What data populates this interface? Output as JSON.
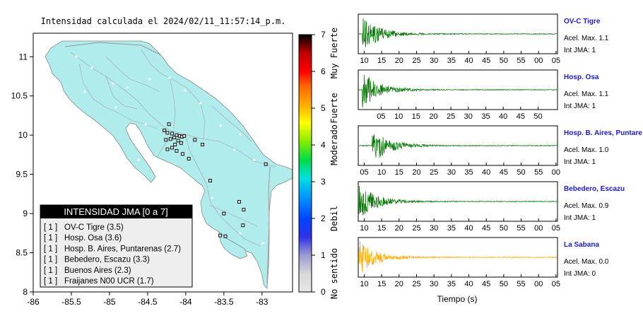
{
  "title": "Intensidad calculada el 2024/02/11_11:57:14_p.m.",
  "map": {
    "lon_range": [
      -86,
      -82.6
    ],
    "lat_range": [
      8,
      11.3
    ],
    "x_ticks": [
      "-86",
      "-85.5",
      "-85",
      "-84.5",
      "-84",
      "-83.5",
      "-83"
    ],
    "x_tick_values": [
      -86,
      -85.5,
      -85,
      -84.5,
      -84,
      -83.5,
      -83
    ],
    "y_ticks": [
      "8",
      "8.5",
      "9",
      "9.5",
      "10",
      "10.5",
      "11"
    ],
    "y_tick_values": [
      8,
      8.5,
      9,
      9.5,
      10,
      10.5,
      11
    ],
    "land_color": "#b0ecec",
    "sea_color": "#ffffff",
    "station_markers": [
      [
        -84.22,
        10.14
      ],
      [
        -84.28,
        10.06
      ],
      [
        -84.24,
        10.03
      ],
      [
        -84.18,
        10.02
      ],
      [
        -84.12,
        10.0
      ],
      [
        -84.08,
        9.99
      ],
      [
        -84.05,
        9.98
      ],
      [
        -84.02,
        9.99
      ],
      [
        -84.15,
        9.97
      ],
      [
        -84.2,
        9.95
      ],
      [
        -84.26,
        9.94
      ],
      [
        -84.1,
        9.93
      ],
      [
        -84.06,
        9.9
      ],
      [
        -84.14,
        9.88
      ],
      [
        -84.18,
        9.84
      ],
      [
        -84.24,
        9.82
      ],
      [
        -84.12,
        9.8
      ],
      [
        -84.04,
        9.76
      ],
      [
        -83.96,
        9.7
      ],
      [
        -83.88,
        9.94
      ],
      [
        -83.78,
        9.88
      ],
      [
        -83.68,
        9.42
      ],
      [
        -83.3,
        9.15
      ],
      [
        -83.24,
        9.05
      ],
      [
        -83.5,
        9.0
      ],
      [
        -83.25,
        8.85
      ],
      [
        -83.55,
        8.72
      ],
      [
        -83.48,
        8.71
      ],
      [
        -82.95,
        9.63
      ]
    ]
  },
  "legend": {
    "title": "INTENSIDAD JMA [0 a 7]",
    "items": [
      {
        "level": "[ 1 ]",
        "label": "OV-C Tigre (3.5)"
      },
      {
        "level": "[ 1 ]",
        "label": "Hosp. Osa (3.6)"
      },
      {
        "level": "[ 1 ]",
        "label": "Hosp. B. Aires, Puntarenas (2.7)"
      },
      {
        "level": "[ 1 ]",
        "label": "Bebedero, Escazu (3.3)"
      },
      {
        "level": "[ 1 ]",
        "label": "Buenos Aires (2.3)"
      },
      {
        "level": "[ 1 ]",
        "label": "Fraijanes N00 UCR (1.7)"
      }
    ]
  },
  "colorbar": {
    "ticks": [
      "0",
      "1",
      "2",
      "3",
      "4",
      "5",
      "6",
      "7"
    ],
    "range": [
      0,
      7
    ],
    "category_labels": [
      {
        "text": "No sentido",
        "value": 0.5
      },
      {
        "text": "Debil",
        "value": 2.0
      },
      {
        "text": "Moderado",
        "value": 4.0
      },
      {
        "text": "Fuerte",
        "value": 5.0
      },
      {
        "text": "Muy Fuerte",
        "value": 6.5
      }
    ],
    "stops": [
      {
        "v": 0.0,
        "c": "#e6e6e6"
      },
      {
        "v": 0.5,
        "c": "#d8d8d8"
      },
      {
        "v": 1.0,
        "c": "#9a9ad0"
      },
      {
        "v": 1.5,
        "c": "#3030e8"
      },
      {
        "v": 2.0,
        "c": "#0044ff"
      },
      {
        "v": 2.6,
        "c": "#0099ff"
      },
      {
        "v": 3.1,
        "c": "#00e0e0"
      },
      {
        "v": 3.6,
        "c": "#00dd44"
      },
      {
        "v": 4.1,
        "c": "#88ee00"
      },
      {
        "v": 4.6,
        "c": "#ffff00"
      },
      {
        "v": 5.1,
        "c": "#ffaa00"
      },
      {
        "v": 5.6,
        "c": "#ff6600"
      },
      {
        "v": 6.0,
        "c": "#ff0000"
      },
      {
        "v": 6.5,
        "c": "#c00000"
      },
      {
        "v": 7.0,
        "c": "#000000"
      }
    ]
  },
  "waveforms": {
    "xlabel": "Tiempo (s)",
    "amax_label": "Acel. Max.",
    "jma_label": "Int JMA:",
    "panels": [
      {
        "name": "OV-C Tigre",
        "acel": "1.1",
        "jma": "1",
        "color": "#0e7a0e",
        "onset": 0.02,
        "ticks": [
          "10",
          "15",
          "20",
          "25",
          "30",
          "35",
          "40",
          "45",
          "50",
          "55",
          "00",
          "05"
        ],
        "tick_start": 0.03
      },
      {
        "name": "Hosp. Osa",
        "acel": "1.1",
        "jma": "1",
        "color": "#0e7a0e",
        "onset": 0.02,
        "ticks": [
          "05",
          "10",
          "15",
          "20",
          "25",
          "30",
          "35",
          "40",
          "45",
          "50"
        ],
        "tick_start": 0.115
      },
      {
        "name": "Hosp. B. Aires, Puntare",
        "acel": "1.0",
        "jma": "1",
        "color": "#0e7a0e",
        "onset": 0.07,
        "ticks": [
          "05",
          "10",
          "15",
          "20",
          "25",
          "30",
          "35",
          "40",
          "45",
          "50",
          "55",
          "00"
        ],
        "tick_start": 0.03
      },
      {
        "name": "Bebedero, Escazu",
        "acel": "0.9",
        "jma": "1",
        "color": "#0e7a0e",
        "onset": 0.0,
        "ticks": [
          "10",
          "15",
          "20",
          "25",
          "30",
          "35",
          "40",
          "45",
          "50",
          "55",
          "00",
          "05"
        ],
        "tick_start": 0.03
      },
      {
        "name": "La Sabana",
        "acel": "0.0",
        "jma": "0",
        "color": "#ffaa00",
        "onset": 0.0,
        "ticks": [
          "10",
          "15",
          "20",
          "25",
          "30",
          "35",
          "40",
          "45",
          "50",
          "55",
          "00",
          "05"
        ],
        "tick_start": 0.03
      }
    ]
  }
}
